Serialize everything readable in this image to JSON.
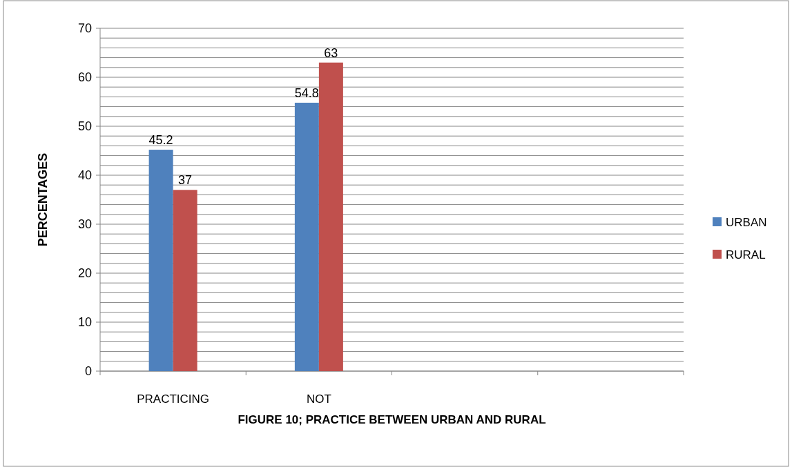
{
  "chart_data": {
    "type": "bar",
    "title": "FIGURE 10; PRACTICE BETWEEN URBAN AND RURAL",
    "ylabel": "PERCENTAGES",
    "categories": [
      "PRACTICING",
      "NOT",
      null,
      null
    ],
    "series": [
      {
        "name": "URBAN",
        "color": "#4f81bd",
        "values": [
          45.2,
          54.8,
          null,
          null
        ]
      },
      {
        "name": "RURAL",
        "color": "#c0504d",
        "values": [
          37,
          63,
          null,
          null
        ]
      }
    ],
    "ylim": [
      0,
      70
    ],
    "yticks": [
      0,
      {
        "value": 2,
        "label": null
      },
      {
        "value": 4,
        "label": null
      },
      {
        "value": 6,
        "label": null
      },
      {
        "value": 8,
        "label": null
      },
      10,
      {
        "value": 12,
        "label": null
      },
      {
        "value": 14,
        "label": null
      },
      {
        "value": 16,
        "label": null
      },
      {
        "value": 18,
        "label": null
      },
      20,
      {
        "value": 22,
        "label": null
      },
      {
        "value": 24,
        "label": null
      },
      {
        "value": 26,
        "label": null
      },
      {
        "value": 28,
        "label": null
      },
      30,
      {
        "value": 32,
        "label": null
      },
      {
        "value": 34,
        "label": null
      },
      {
        "value": 36,
        "label": null
      },
      {
        "value": 38,
        "label": null
      },
      40,
      {
        "value": 42,
        "label": null
      },
      {
        "value": 44,
        "label": null
      },
      {
        "value": 46,
        "label": null
      },
      {
        "value": 48,
        "label": null
      },
      50,
      {
        "value": 52,
        "label": null
      },
      {
        "value": 54,
        "label": null
      },
      {
        "value": 56,
        "label": null
      },
      {
        "value": 58,
        "label": null
      },
      60,
      {
        "value": 62,
        "label": null
      },
      {
        "value": 64,
        "label": null
      },
      {
        "value": 66,
        "label": null
      },
      {
        "value": 68,
        "label": null
      },
      70
    ],
    "grid": "y",
    "legend": "right",
    "data_labels": true
  }
}
